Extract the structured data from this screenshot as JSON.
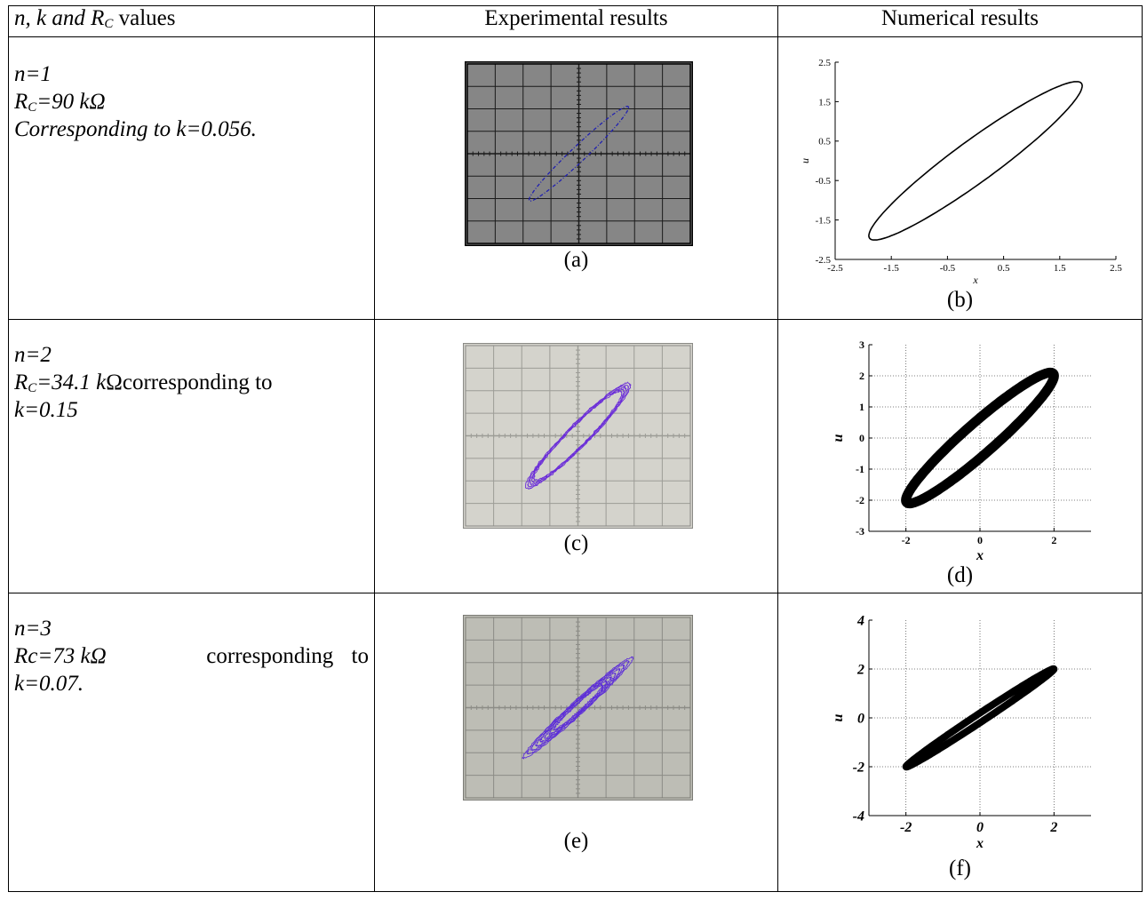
{
  "header": {
    "col0": {
      "pre": "n, k and R",
      "sub": "C",
      "post": " values"
    },
    "col1": "Experimental results",
    "col2": "Numerical results"
  },
  "rows": [
    {
      "params": {
        "line1": "n=1",
        "line2_pre": "R",
        "line2_sub": "C",
        "line2_post": "=90 kΩ",
        "line3": "Corresponding to k=0.056."
      },
      "caption_exp": "(a)",
      "caption_num": "(b)"
    },
    {
      "params": {
        "line1": "n=2",
        "line2_pre": "R",
        "line2_sub": "C",
        "line2_mid": "=34.1 k",
        "line2_post": "Ωcorresponding to",
        "line3": "k=0.15"
      },
      "caption_exp": "(c)",
      "caption_num": "(d)"
    },
    {
      "params": {
        "line1": "n=3",
        "line2_pre": "Rc=73 kΩ",
        "line2_post": "corresponding to",
        "line3": "k=0.07."
      },
      "caption_exp": "(e)",
      "caption_num": "(f)"
    }
  ],
  "chart_data": [
    {
      "id": "b",
      "type": "line",
      "xlabel": "x",
      "ylabel": "u",
      "xlim": [
        -2.5,
        2.5
      ],
      "ylim": [
        -2.5,
        2.5
      ],
      "xticks": [
        "-2.5",
        "-1.5",
        "-0.5",
        "0.5",
        "1.5",
        "2.5"
      ],
      "yticks": [
        "2.5",
        "1.5",
        "0.5",
        "-0.5",
        "-1.5",
        "-2.5"
      ],
      "grid": false,
      "series": [
        {
          "shape": "closed loop (limit cycle)",
          "extent_x": [
            -1.9,
            1.9
          ],
          "extent_y": [
            -2.0,
            2.0
          ],
          "width_at_x0": 1.3
        }
      ]
    },
    {
      "id": "d",
      "type": "line",
      "xlabel": "x",
      "ylabel": "u",
      "xlim": [
        -3,
        3
      ],
      "ylim": [
        -3,
        3
      ],
      "xticks": [
        "-2",
        "0",
        "2"
      ],
      "yticks": [
        "3",
        "2",
        "1",
        "0",
        "-1",
        "-2",
        "-3"
      ],
      "grid": true,
      "series": [
        {
          "shape": "thick closed loop",
          "extent_x": [
            -2.0,
            2.0
          ],
          "extent_y": [
            -2.0,
            2.0
          ],
          "width_at_x0": 1.3
        }
      ]
    },
    {
      "id": "f",
      "type": "line",
      "xlabel": "x",
      "ylabel": "u",
      "xlim": [
        -3,
        3
      ],
      "ylim": [
        -4,
        4
      ],
      "xticks": [
        "-2",
        "0",
        "2"
      ],
      "yticks": [
        "4",
        "2",
        "0",
        "-2",
        "-4"
      ],
      "grid": true,
      "series": [
        {
          "shape": "thin band along diagonal",
          "extent_x": [
            -2.0,
            2.0
          ],
          "extent_y": [
            -2.0,
            2.0
          ],
          "width_at_x0": 0.4
        }
      ]
    }
  ],
  "scopes": [
    {
      "id": "a",
      "background": "#868686",
      "gridline": "#1a1a1a",
      "trace": "#2020b0"
    },
    {
      "id": "c",
      "background": "#d4d3cc",
      "gridline": "#9c9c96",
      "trace": "#6a2cd8"
    },
    {
      "id": "e",
      "background": "#bdbdb5",
      "gridline": "#8c8c86",
      "trace": "#5a2ad8"
    }
  ]
}
